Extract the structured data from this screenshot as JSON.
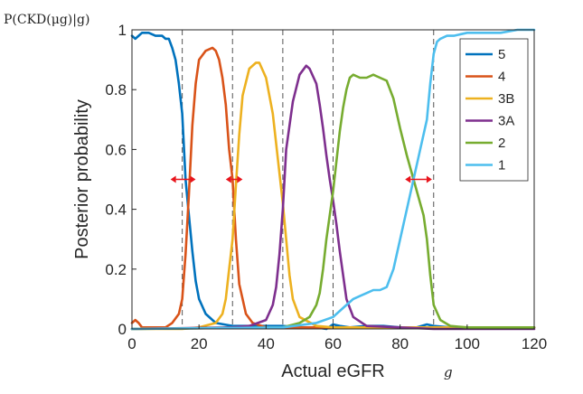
{
  "corner_label": "P(CKD(μg)|g)",
  "x_symbol": "g",
  "chart_data": {
    "type": "line",
    "title": "",
    "xlabel": "Actual eGFR",
    "ylabel": "Posterior probability",
    "xlim": [
      0,
      120
    ],
    "ylim": [
      0,
      1
    ],
    "xticks": [
      0,
      20,
      40,
      60,
      80,
      100,
      120
    ],
    "xtick_labels": [
      "0",
      "20",
      "40",
      "60",
      "80",
      "100",
      "120"
    ],
    "yticks": [
      0,
      0.2,
      0.4,
      0.6,
      0.8,
      1
    ],
    "ytick_labels": [
      "0",
      "0.2",
      "0.4",
      "0.6",
      "0.8",
      "1"
    ],
    "grid": false,
    "legend_position": "top-right",
    "threshold_lines": [
      15,
      30,
      45,
      60,
      90,
      120
    ],
    "uncertainty_arrows": [
      {
        "center": 15,
        "from": 11.5,
        "to": 19,
        "y": 0.5
      },
      {
        "center": 30,
        "from": 28,
        "to": 33,
        "y": 0.5
      },
      {
        "center": 83,
        "from": 81.5,
        "to": 89.5,
        "y": 0.5
      }
    ],
    "series": [
      {
        "name": "5",
        "color": "#0072BD",
        "x": [
          0,
          1,
          2,
          3,
          5,
          7,
          9,
          10,
          11,
          12,
          13,
          14,
          15,
          16,
          17,
          18,
          19,
          20,
          22,
          25,
          30,
          35,
          40,
          45,
          50,
          55,
          58,
          60,
          62,
          65,
          70,
          75,
          80,
          85,
          88,
          90,
          95,
          100,
          110,
          120
        ],
        "y": [
          0.98,
          0.97,
          0.98,
          0.99,
          0.99,
          0.98,
          0.98,
          0.97,
          0.97,
          0.94,
          0.9,
          0.82,
          0.72,
          0.5,
          0.38,
          0.26,
          0.16,
          0.1,
          0.05,
          0.02,
          0.01,
          0.01,
          0.01,
          0.01,
          0.005,
          0.005,
          0.0,
          0.015,
          0.01,
          0.005,
          0.01,
          0.01,
          0.005,
          0.005,
          0.015,
          0.01,
          0.005,
          0.005,
          0.005,
          0.005
        ]
      },
      {
        "name": "4",
        "color": "#D95319",
        "x": [
          0,
          1,
          2,
          3,
          5,
          10,
          12,
          14,
          15,
          16,
          17,
          18,
          19,
          20,
          22,
          24,
          25,
          26,
          27,
          28,
          29,
          30,
          31,
          32,
          34,
          36,
          40,
          45,
          50,
          55,
          60,
          70,
          80,
          90,
          100,
          110,
          120
        ],
        "y": [
          0.02,
          0.03,
          0.02,
          0.005,
          0.005,
          0.005,
          0.02,
          0.05,
          0.1,
          0.25,
          0.45,
          0.68,
          0.82,
          0.9,
          0.93,
          0.94,
          0.93,
          0.9,
          0.84,
          0.75,
          0.6,
          0.5,
          0.3,
          0.15,
          0.05,
          0.02,
          0.005,
          0.005,
          0.005,
          0.005,
          0.005,
          0.005,
          0.005,
          0.005,
          0.005,
          0.005,
          0.005
        ]
      },
      {
        "name": "3B",
        "color": "#EDB120",
        "x": [
          0,
          15,
          20,
          25,
          27,
          28,
          29,
          30,
          31,
          32,
          33,
          35,
          37,
          38,
          40,
          42,
          43,
          44,
          45,
          46,
          47,
          48,
          50,
          55,
          60,
          70,
          80,
          90,
          100,
          120
        ],
        "y": [
          0.0,
          0.0,
          0.005,
          0.02,
          0.05,
          0.1,
          0.2,
          0.3,
          0.48,
          0.65,
          0.78,
          0.87,
          0.89,
          0.89,
          0.84,
          0.72,
          0.62,
          0.52,
          0.42,
          0.3,
          0.18,
          0.1,
          0.04,
          0.01,
          0.005,
          0.005,
          0.005,
          0.005,
          0.005,
          0.005
        ]
      },
      {
        "name": "3A",
        "color": "#7E2F8E",
        "x": [
          0,
          30,
          35,
          40,
          42,
          43,
          44,
          45,
          46,
          48,
          50,
          52,
          53,
          55,
          56,
          57,
          58,
          59,
          60,
          61,
          62,
          63,
          64,
          66,
          70,
          80,
          90,
          100,
          120
        ],
        "y": [
          0.0,
          0.005,
          0.01,
          0.03,
          0.08,
          0.14,
          0.25,
          0.4,
          0.6,
          0.76,
          0.85,
          0.88,
          0.87,
          0.82,
          0.75,
          0.67,
          0.58,
          0.5,
          0.43,
          0.35,
          0.26,
          0.18,
          0.1,
          0.04,
          0.01,
          0.005,
          0.0,
          0.0,
          0.0
        ]
      },
      {
        "name": "2",
        "color": "#77AC30",
        "x": [
          0,
          45,
          50,
          53,
          55,
          56,
          57,
          58,
          59,
          60,
          61,
          62,
          63,
          64,
          65,
          66,
          68,
          70,
          72,
          74,
          76,
          78,
          80,
          82,
          84,
          86,
          87,
          88,
          89,
          90,
          92,
          95,
          100,
          110,
          120
        ],
        "y": [
          0.0,
          0.005,
          0.02,
          0.04,
          0.08,
          0.12,
          0.2,
          0.3,
          0.38,
          0.46,
          0.56,
          0.66,
          0.74,
          0.8,
          0.84,
          0.85,
          0.84,
          0.84,
          0.85,
          0.84,
          0.83,
          0.77,
          0.67,
          0.58,
          0.5,
          0.42,
          0.38,
          0.3,
          0.18,
          0.08,
          0.03,
          0.01,
          0.005,
          0.005,
          0.005
        ]
      },
      {
        "name": "1",
        "color": "#4DBEEE",
        "x": [
          0,
          45,
          55,
          60,
          62,
          64,
          66,
          68,
          70,
          72,
          74,
          76,
          78,
          80,
          82,
          84,
          86,
          88,
          89,
          90,
          91,
          92,
          94,
          96,
          100,
          105,
          110,
          115,
          120
        ],
        "y": [
          0.0,
          0.005,
          0.02,
          0.04,
          0.06,
          0.08,
          0.1,
          0.11,
          0.12,
          0.13,
          0.13,
          0.14,
          0.2,
          0.3,
          0.4,
          0.5,
          0.6,
          0.7,
          0.82,
          0.92,
          0.96,
          0.97,
          0.98,
          0.98,
          0.99,
          0.99,
          0.99,
          1.0,
          1.0
        ]
      }
    ]
  }
}
